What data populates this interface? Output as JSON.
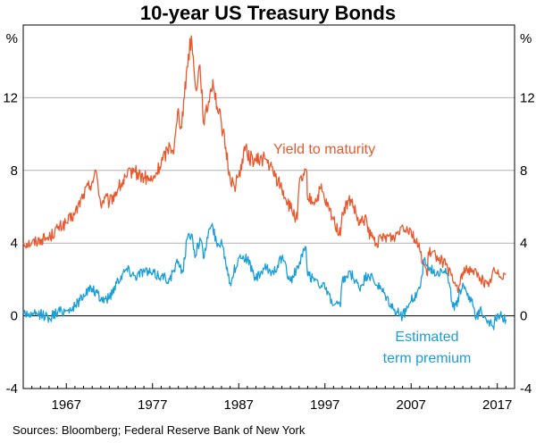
{
  "chart_data": {
    "type": "line",
    "title": "10-year US Treasury Bonds",
    "y_unit_label": "%",
    "ylim": [
      -4,
      16
    ],
    "yticks": [
      -4,
      0,
      4,
      8,
      12
    ],
    "xlim": [
      1962,
      2019
    ],
    "xticks": [
      1967,
      1977,
      1987,
      1997,
      2007,
      2017
    ],
    "source": "Sources: Bloomberg; Federal Reserve Bank of New York",
    "series": [
      {
        "name": "Yield to maturity",
        "label": "Yield to maturity",
        "color": "#e8592e",
        "x": [
          1962,
          1963,
          1964,
          1965,
          1966,
          1967,
          1968,
          1969,
          1970,
          1970.5,
          1971,
          1971.5,
          1972,
          1973,
          1974,
          1974.8,
          1975,
          1976,
          1977,
          1978,
          1979,
          1979.5,
          1980,
          1980.3,
          1980.7,
          1981,
          1981.5,
          1981.8,
          1982,
          1982.5,
          1983,
          1983.5,
          1984,
          1984.5,
          1985,
          1986,
          1986.5,
          1987,
          1987.8,
          1988,
          1989,
          1990,
          1991,
          1992,
          1993,
          1993.8,
          1994,
          1994.9,
          1995,
          1996,
          1996.5,
          1997,
          1998,
          1998.8,
          1999,
          2000,
          2001,
          2001.8,
          2002,
          2003,
          2004,
          2005,
          2006,
          2007,
          2008,
          2008.9,
          2009,
          2010,
          2011,
          2012,
          2012.5,
          2013,
          2014,
          2015,
          2016,
          2016.5,
          2017,
          2018
        ],
        "y": [
          4.0,
          4.0,
          4.2,
          4.3,
          4.8,
          5.1,
          5.6,
          6.7,
          7.4,
          7.9,
          6.1,
          6.5,
          6.2,
          7.0,
          7.6,
          8.1,
          7.9,
          7.6,
          7.4,
          8.4,
          9.4,
          9.2,
          11.4,
          10.4,
          12.0,
          13.7,
          15.4,
          13.6,
          12.5,
          13.8,
          10.5,
          11.8,
          13.0,
          11.5,
          10.6,
          7.6,
          7.1,
          7.7,
          9.3,
          8.8,
          8.5,
          8.7,
          7.9,
          7.0,
          5.9,
          5.3,
          7.2,
          7.9,
          6.4,
          6.3,
          7.0,
          6.3,
          5.3,
          4.4,
          5.7,
          6.4,
          5.0,
          5.4,
          4.6,
          4.0,
          4.4,
          4.3,
          5.0,
          4.7,
          3.6,
          2.2,
          3.5,
          3.3,
          2.8,
          1.8,
          1.5,
          2.4,
          2.6,
          2.1,
          1.6,
          2.5,
          2.3,
          2.3
        ]
      },
      {
        "name": "Estimated term premium",
        "label_line1": "Estimated",
        "label_line2": "term premium",
        "color": "#1a9fd8",
        "x": [
          1962,
          1963,
          1964,
          1965,
          1966,
          1967,
          1968,
          1969,
          1970,
          1971,
          1972,
          1973,
          1974,
          1975,
          1976,
          1977,
          1978,
          1979,
          1980,
          1980.5,
          1981,
          1981.5,
          1982,
          1982.5,
          1983,
          1983.5,
          1984,
          1984.5,
          1985,
          1986,
          1987,
          1987.5,
          1988,
          1989,
          1990,
          1991,
          1992,
          1993,
          1994,
          1994.8,
          1995,
          1996,
          1997,
          1998,
          1998.8,
          1999,
          2000,
          2001,
          2002,
          2003,
          2004,
          2005,
          2006,
          2007,
          2008,
          2008.5,
          2009,
          2010,
          2011,
          2012,
          2013,
          2014,
          2014.5,
          2015,
          2016,
          2016.5,
          2017,
          2018
        ],
        "y": [
          0.2,
          0.0,
          0.1,
          -0.1,
          0.2,
          0.3,
          0.5,
          1.2,
          1.5,
          0.9,
          1.0,
          2.0,
          2.6,
          2.2,
          2.5,
          2.3,
          2.2,
          2.0,
          3.0,
          2.4,
          4.2,
          4.5,
          3.3,
          4.3,
          3.2,
          4.7,
          4.9,
          3.8,
          4.2,
          1.8,
          3.2,
          3.3,
          3.1,
          2.0,
          2.6,
          2.4,
          3.2,
          1.9,
          2.8,
          3.8,
          2.2,
          2.0,
          1.5,
          0.6,
          0.5,
          1.9,
          2.3,
          1.5,
          2.3,
          1.7,
          1.1,
          0.3,
          0.0,
          0.8,
          1.5,
          3.1,
          2.6,
          2.4,
          2.6,
          0.3,
          1.8,
          0.8,
          -0.2,
          0.4,
          -0.3,
          -0.6,
          0.1,
          -0.2
        ]
      }
    ]
  }
}
